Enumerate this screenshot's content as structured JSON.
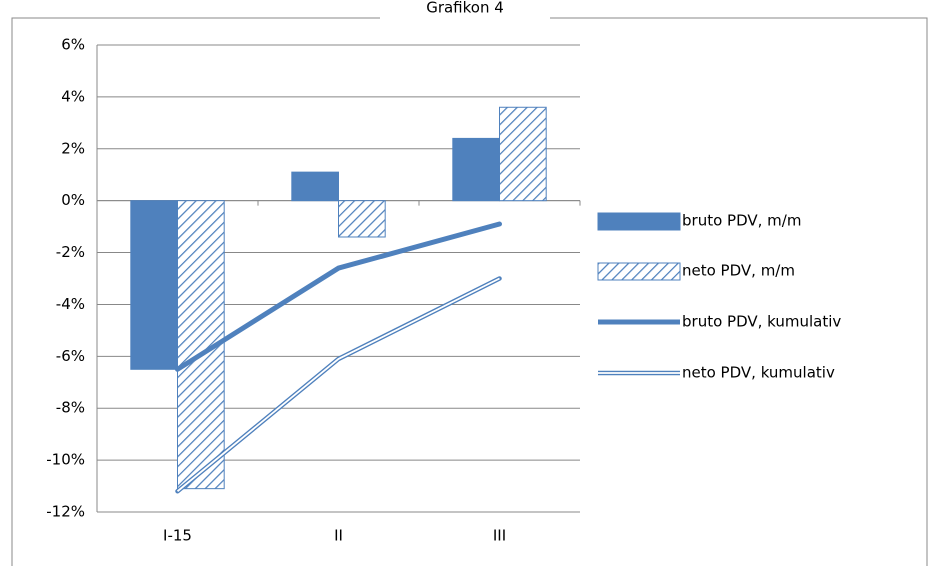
{
  "chart_data": {
    "type": "bar",
    "title": "Grafikon 4",
    "categories": [
      "I-15",
      "II",
      "III"
    ],
    "series": [
      {
        "name": "bruto PDV, m/m",
        "type": "bar",
        "color": "#4f81bd",
        "pattern": "solid",
        "values": [
          -6.5,
          1.1,
          2.4
        ]
      },
      {
        "name": "neto PDV, m/m",
        "type": "bar",
        "color": "#4f81bd",
        "pattern": "hatch",
        "values": [
          -11.1,
          -1.4,
          3.6
        ]
      },
      {
        "name": "bruto PDV, kumulativ",
        "type": "line",
        "color": "#4f81bd",
        "line_style": "thick",
        "values": [
          -6.5,
          -2.6,
          -0.9
        ]
      },
      {
        "name": "neto PDV, kumulativ",
        "type": "line",
        "color": "#4f81bd",
        "line_style": "double",
        "values": [
          -11.2,
          -6.1,
          -3.0
        ]
      }
    ],
    "ylim": [
      -12,
      6
    ],
    "yticks": [
      {
        "value": -12,
        "label": "-12%"
      },
      {
        "value": -10,
        "label": "-10%"
      },
      {
        "value": -8,
        "label": "-8%"
      },
      {
        "value": -6,
        "label": "-6%"
      },
      {
        "value": -4,
        "label": "-4%"
      },
      {
        "value": -2,
        "label": "-2%"
      },
      {
        "value": 0,
        "label": "0%"
      },
      {
        "value": 2,
        "label": "2%"
      },
      {
        "value": 4,
        "label": "4%"
      },
      {
        "value": 6,
        "label": "6%"
      }
    ],
    "grid": true,
    "legend": "right"
  }
}
